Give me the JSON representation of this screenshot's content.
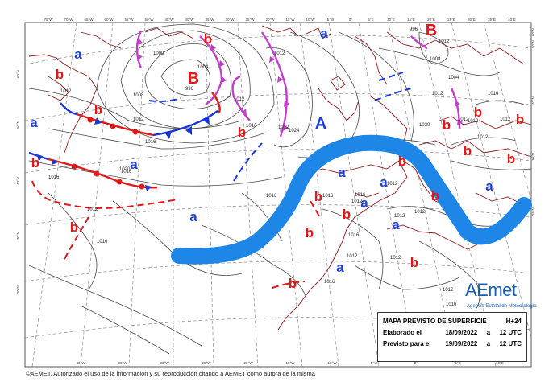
{
  "title_box": {
    "title": "MAPA PREVISTO DE SUPERFICIE",
    "lead": "H+24",
    "issued_label": "Elaborado el",
    "issued_date": "18/09/2022",
    "issued_sep": "a",
    "issued_time": "12 UTC",
    "valid_label": "Previsto para el",
    "valid_date": "19/09/2022",
    "valid_sep": "a",
    "valid_time": "12 UTC"
  },
  "logo": {
    "word": "AEmet",
    "subtitle": "Agencia Estatal de Meteorología"
  },
  "footer": "©AEMET. Autorizado el uso de la información y su reproducción citando a AEMET como autora de la misma",
  "colors": {
    "high": "#1f3fd6",
    "low": "#e01818",
    "cold_front": "#1a36d8",
    "warm_front": "#e01818",
    "occluded_front": "#c040c8",
    "jet": "#1e86e6",
    "coast": "#8b1a1a",
    "isobar": "#444444",
    "graticule": "#888888"
  },
  "centers": [
    {
      "label": "a"
    },
    {
      "label": "a"
    },
    {
      "label": "B"
    },
    {
      "label": "B"
    },
    {
      "label": "b"
    },
    {
      "label": "b"
    },
    {
      "label": "b"
    },
    {
      "label": "a"
    },
    {
      "label": "b"
    },
    {
      "label": "b"
    },
    {
      "label": "a"
    },
    {
      "label": "a"
    },
    {
      "label": "A"
    },
    {
      "label": "b"
    },
    {
      "label": "b"
    },
    {
      "label": "b"
    },
    {
      "label": "b"
    },
    {
      "label": "b"
    },
    {
      "label": "b"
    },
    {
      "label": "a"
    },
    {
      "label": "a"
    },
    {
      "label": "a"
    },
    {
      "label": "b"
    },
    {
      "label": "a"
    },
    {
      "label": "b"
    },
    {
      "label": "a"
    },
    {
      "label": "b"
    },
    {
      "label": "a"
    },
    {
      "label": "b"
    },
    {
      "label": "b"
    },
    {
      "label": "b"
    },
    {
      "label": "b"
    },
    {
      "label": "a"
    },
    {
      "label": "a"
    },
    {
      "label": "b"
    },
    {
      "label": "a"
    },
    {
      "label": "b"
    },
    {
      "label": "b"
    },
    {
      "label": "B"
    }
  ],
  "isobar_labels": [
    "1012",
    "1012",
    "1016",
    "1016",
    "1012",
    "1008",
    "1000",
    "996",
    "1004",
    "1012",
    "1012",
    "1016",
    "1016",
    "1020",
    "1024",
    "1012",
    "1016",
    "1012",
    "1012",
    "1016",
    "1016",
    "1012",
    "1012",
    "1016",
    "1012",
    "1016",
    "1012",
    "1012",
    "1012",
    "1016",
    "1020",
    "1004",
    "1008",
    "1012",
    "996",
    "1012",
    "1012",
    "1012",
    "1016",
    "1016",
    "1012"
  ],
  "lat_labels": [
    "60°N",
    "50°N",
    "40°N",
    "30°N",
    "20°N",
    "25°N",
    "30°N",
    "40°N",
    "50°N",
    "60°N"
  ],
  "lon_labels_top": [
    "75°W",
    "70°W",
    "65°W",
    "60°W",
    "55°W",
    "50°W",
    "45°W",
    "40°W",
    "35°W",
    "30°W",
    "25°W",
    "20°W",
    "15°W",
    "10°W",
    "5°W",
    "0°",
    "5°E",
    "10°E",
    "15°E",
    "20°E",
    "25°E",
    "30°E",
    "35°E",
    "40°E"
  ],
  "lon_labels_bottom": [
    "40°W",
    "35°W",
    "30°W",
    "25°W",
    "20°W",
    "15°W",
    "10°W",
    "5°W",
    "0°",
    "5°E",
    "10°E"
  ]
}
